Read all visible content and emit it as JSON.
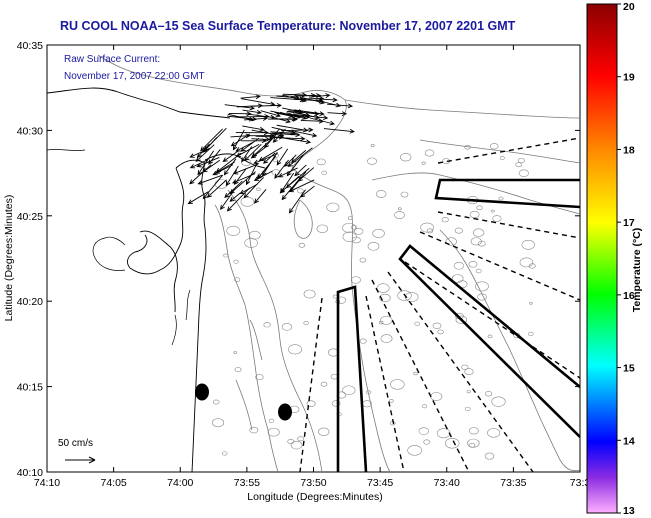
{
  "title": "RU COOL  NOAA–15  Sea Surface Temperature:  November 17, 2007 2201 GMT",
  "current_note": {
    "line1": "Raw Surface Current:",
    "line2": "November 17, 2007 22:00 GMT"
  },
  "axes": {
    "xlabel": "Longitude (Degrees:Minutes)",
    "ylabel": "Latitude (Degrees:Minutes)",
    "x_ticks": [
      "74:10",
      "74:05",
      "74:00",
      "73:55",
      "73:50",
      "73:45",
      "73:40",
      "73:35",
      "73:3"
    ],
    "y_ticks": [
      "40:35",
      "40:30",
      "40:25",
      "40:20",
      "40:15",
      "40:10"
    ]
  },
  "scale_label": "50 cm/s",
  "colorbar": {
    "label": "Temperature (°C)",
    "ticks": [
      "20",
      "19",
      "18",
      "17",
      "16",
      "15",
      "14",
      "13"
    ],
    "colors": [
      "#8b0000",
      "#ff0000",
      "#ff8c00",
      "#ffff00",
      "#00ff00",
      "#00ffff",
      "#0000ff",
      "#ff88ff"
    ]
  }
}
